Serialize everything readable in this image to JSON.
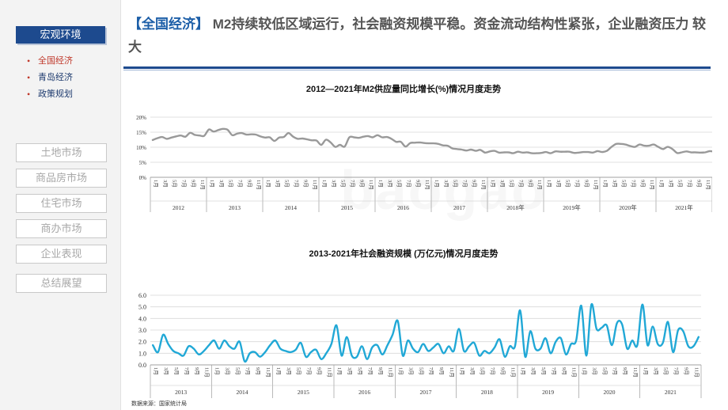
{
  "sidebar": {
    "header": "宏观环境",
    "sub_items": [
      "全国经济",
      "青岛经济",
      "政策规划"
    ],
    "nav_buttons": [
      "土地市场",
      "商品房市场",
      "住宅市场",
      "商办市场",
      "企业表现",
      "总结展望"
    ]
  },
  "header": {
    "tag": "【全国经济】",
    "title": " M2持续较低区域运行，社会融资规模平稳。资金流动结构性紧张，企业融资压力 较大"
  },
  "source": "数据来源：国家统计局",
  "watermark": "baogao",
  "colors": {
    "m2_line": "#999999",
    "sf_line": "#21a8d6",
    "accent": "#1d4a8e"
  },
  "chart_data": [
    {
      "type": "line",
      "title": "2012—2021年M2供应量同比增长(%)情况月度走势",
      "ylim": [
        0,
        20
      ],
      "yticks": [
        "0%",
        "5%",
        "10%",
        "15%",
        "20%"
      ],
      "month_tick_labels": [
        "1月",
        "3月",
        "5月",
        "7月",
        "9月",
        "11月"
      ],
      "year_labels": [
        "2012",
        "2013",
        "2014",
        "2015",
        "2016",
        "2017",
        "2018年",
        "2019年",
        "2020年",
        "2021年"
      ],
      "start": "2012-01",
      "series": [
        {
          "values": [
            12.4,
            13.0,
            13.4,
            12.8,
            13.2,
            13.6,
            13.9,
            13.5,
            14.8,
            14.1,
            13.9,
            13.8,
            15.9,
            15.2,
            15.7,
            16.1,
            15.8,
            14.0,
            14.5,
            14.7,
            14.2,
            14.3,
            14.2,
            13.6,
            13.2,
            13.3,
            12.1,
            13.2,
            13.4,
            14.7,
            13.5,
            12.8,
            12.9,
            12.6,
            12.3,
            12.2,
            10.8,
            12.5,
            11.6,
            10.1,
            10.8,
            10.2,
            13.3,
            13.3,
            13.1,
            13.5,
            13.7,
            13.3,
            14.0,
            13.3,
            13.4,
            12.8,
            11.8,
            11.8,
            10.2,
            11.4,
            11.5,
            11.6,
            11.4,
            11.3,
            11.3,
            11.1,
            10.6,
            10.5,
            9.6,
            9.4,
            9.2,
            8.9,
            9.2,
            8.8,
            9.1,
            8.2,
            8.6,
            8.8,
            8.2,
            8.3,
            8.3,
            8.0,
            8.5,
            8.2,
            8.3,
            8.0,
            8.0,
            8.1,
            8.4,
            8.0,
            8.6,
            8.5,
            8.5,
            8.5,
            8.1,
            8.2,
            8.4,
            8.4,
            8.2,
            8.7,
            8.4,
            8.8,
            10.1,
            11.1,
            11.1,
            10.9,
            10.4,
            10.1,
            10.9,
            10.5,
            10.5,
            10.9,
            10.1,
            9.4,
            10.1,
            9.4,
            8.1,
            8.3,
            8.6,
            8.3,
            8.3,
            8.2,
            8.3,
            8.7,
            8.5
          ]
        }
      ]
    },
    {
      "type": "line",
      "title": "2013-2021年社会融资规模 (万亿元)情况月度走势",
      "ylim": [
        0,
        6
      ],
      "yticks": [
        "0.0",
        "1.0",
        "2.0",
        "3.0",
        "4.0",
        "5.0",
        "6.0"
      ],
      "month_tick_labels": [
        "1月",
        "3月",
        "5月",
        "7月",
        "9月",
        "11月"
      ],
      "year_labels": [
        "2013",
        "2014",
        "2015",
        "2016",
        "2017",
        "2018",
        "2019",
        "2020",
        "2021"
      ],
      "start": "2013-01",
      "series": [
        {
          "values": [
            1.7,
            1.1,
            2.6,
            1.8,
            1.2,
            1.0,
            0.8,
            1.6,
            1.4,
            0.9,
            1.2,
            1.7,
            2.1,
            1.4,
            2.1,
            1.6,
            1.4,
            2.0,
            0.3,
            1.0,
            1.1,
            0.7,
            1.1,
            1.7,
            2.1,
            1.4,
            1.2,
            1.1,
            1.3,
            1.9,
            0.7,
            1.1,
            1.3,
            0.5,
            1.0,
            1.8,
            3.4,
            0.8,
            2.4,
            0.8,
            0.7,
            1.6,
            0.5,
            1.5,
            1.7,
            0.9,
            1.7,
            2.6,
            3.8,
            0.8,
            2.1,
            1.4,
            1.1,
            1.8,
            1.2,
            1.5,
            1.8,
            1.0,
            1.6,
            1.2,
            3.1,
            1.2,
            1.6,
            1.9,
            0.8,
            1.2,
            1.0,
            1.5,
            2.2,
            0.7,
            1.6,
            1.6,
            4.7,
            0.7,
            2.9,
            1.4,
            1.4,
            2.3,
            1.0,
            2.0,
            2.3,
            0.9,
            1.8,
            2.1,
            5.1,
            0.8,
            5.2,
            3.1,
            3.2,
            3.4,
            1.7,
            3.6,
            3.5,
            1.4,
            2.1,
            1.7,
            5.2,
            1.7,
            3.3,
            1.8,
            1.9,
            3.7,
            1.1,
            3.0,
            2.9,
            1.6,
            1.6,
            2.4
          ]
        }
      ]
    }
  ]
}
